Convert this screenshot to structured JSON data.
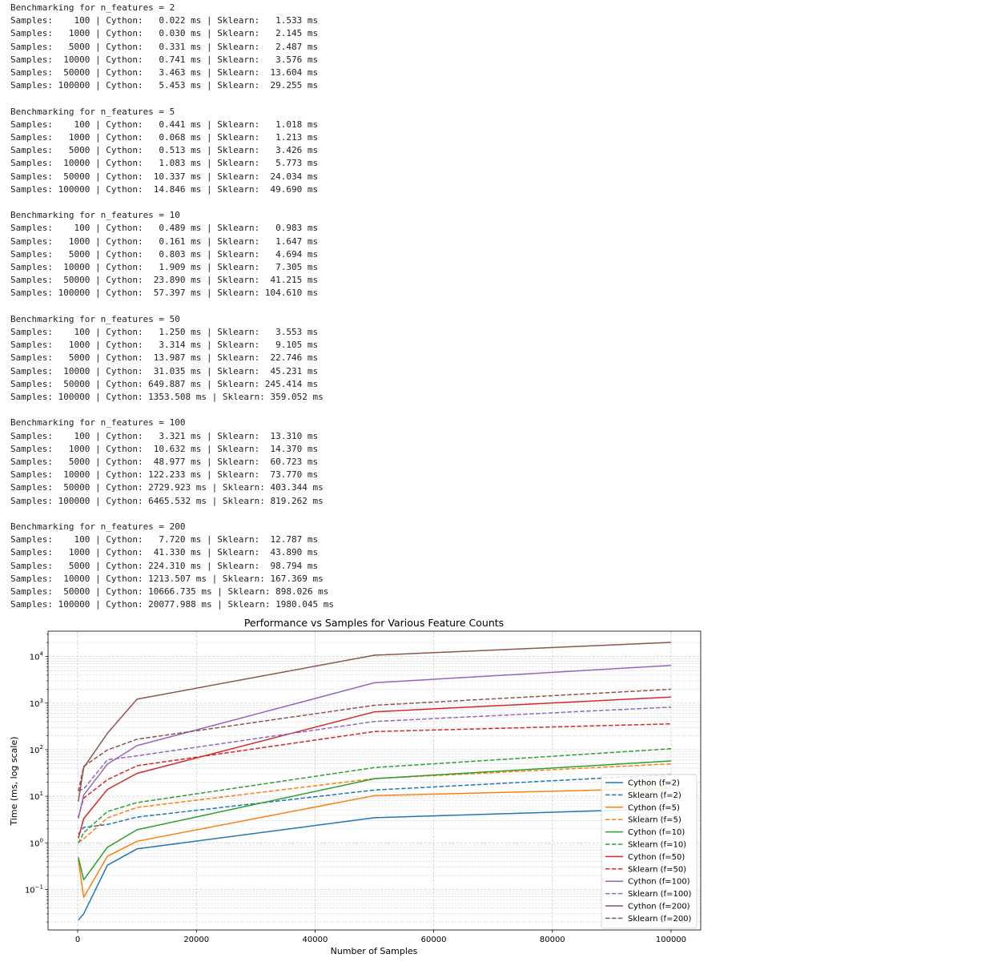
{
  "console": {
    "blocks": [
      {
        "header": "Benchmarking for n_features = 2",
        "lines": [
          "Samples:    100 | Cython:   0.022 ms | Sklearn:   1.533 ms",
          "Samples:   1000 | Cython:   0.030 ms | Sklearn:   2.145 ms",
          "Samples:   5000 | Cython:   0.331 ms | Sklearn:   2.487 ms",
          "Samples:  10000 | Cython:   0.741 ms | Sklearn:   3.576 ms",
          "Samples:  50000 | Cython:   3.463 ms | Sklearn:  13.604 ms",
          "Samples: 100000 | Cython:   5.453 ms | Sklearn:  29.255 ms"
        ]
      },
      {
        "header": "Benchmarking for n_features = 5",
        "lines": [
          "Samples:    100 | Cython:   0.441 ms | Sklearn:   1.018 ms",
          "Samples:   1000 | Cython:   0.068 ms | Sklearn:   1.213 ms",
          "Samples:   5000 | Cython:   0.513 ms | Sklearn:   3.426 ms",
          "Samples:  10000 | Cython:   1.083 ms | Sklearn:   5.773 ms",
          "Samples:  50000 | Cython:  10.337 ms | Sklearn:  24.034 ms",
          "Samples: 100000 | Cython:  14.846 ms | Sklearn:  49.690 ms"
        ]
      },
      {
        "header": "Benchmarking for n_features = 10",
        "lines": [
          "Samples:    100 | Cython:   0.489 ms | Sklearn:   0.983 ms",
          "Samples:   1000 | Cython:   0.161 ms | Sklearn:   1.647 ms",
          "Samples:   5000 | Cython:   0.803 ms | Sklearn:   4.694 ms",
          "Samples:  10000 | Cython:   1.909 ms | Sklearn:   7.305 ms",
          "Samples:  50000 | Cython:  23.890 ms | Sklearn:  41.215 ms",
          "Samples: 100000 | Cython:  57.397 ms | Sklearn: 104.610 ms"
        ]
      },
      {
        "header": "Benchmarking for n_features = 50",
        "lines": [
          "Samples:    100 | Cython:   1.250 ms | Sklearn:   3.553 ms",
          "Samples:   1000 | Cython:   3.314 ms | Sklearn:   9.105 ms",
          "Samples:   5000 | Cython:  13.987 ms | Sklearn:  22.746 ms",
          "Samples:  10000 | Cython:  31.035 ms | Sklearn:  45.231 ms",
          "Samples:  50000 | Cython: 649.887 ms | Sklearn: 245.414 ms",
          "Samples: 100000 | Cython: 1353.508 ms | Sklearn: 359.052 ms"
        ]
      },
      {
        "header": "Benchmarking for n_features = 100",
        "lines": [
          "Samples:    100 | Cython:   3.321 ms | Sklearn:  13.310 ms",
          "Samples:   1000 | Cython:  10.632 ms | Sklearn:  14.370 ms",
          "Samples:   5000 | Cython:  48.977 ms | Sklearn:  60.723 ms",
          "Samples:  10000 | Cython: 122.233 ms | Sklearn:  73.770 ms",
          "Samples:  50000 | Cython: 2729.923 ms | Sklearn: 403.344 ms",
          "Samples: 100000 | Cython: 6465.532 ms | Sklearn: 819.262 ms"
        ]
      },
      {
        "header": "Benchmarking for n_features = 200",
        "lines": [
          "Samples:    100 | Cython:   7.720 ms | Sklearn:  12.787 ms",
          "Samples:   1000 | Cython:  41.330 ms | Sklearn:  43.890 ms",
          "Samples:   5000 | Cython: 224.310 ms | Sklearn:  98.794 ms",
          "Samples:  10000 | Cython: 1213.507 ms | Sklearn: 167.369 ms",
          "Samples:  50000 | Cython: 10666.735 ms | Sklearn: 898.026 ms",
          "Samples: 100000 | Cython: 20077.988 ms | Sklearn: 1980.045 ms"
        ]
      }
    ]
  },
  "chart_data": {
    "type": "line",
    "title": "Performance vs Samples for Various Feature Counts",
    "xlabel": "Number of Samples",
    "ylabel": "Time (ms, log scale)",
    "xscale": "linear",
    "yscale": "log",
    "xlim": [
      -5000,
      105000
    ],
    "ylim": [
      0.0135,
      35000
    ],
    "xticks": [
      0,
      20000,
      40000,
      60000,
      80000,
      100000
    ],
    "xtick_labels": [
      "0",
      "20000",
      "40000",
      "60000",
      "80000",
      "100000"
    ],
    "yticks": [
      0.1,
      1,
      10,
      100,
      1000,
      10000
    ],
    "ytick_base": "10",
    "ytick_exponents": [
      "−1",
      "0",
      "1",
      "2",
      "3",
      "4"
    ],
    "grid": true,
    "legend_position": "lower right",
    "x": [
      100,
      1000,
      5000,
      10000,
      50000,
      100000
    ],
    "series": [
      {
        "name": "Cython (f=2)",
        "color": "#1f77b4",
        "dash": "solid",
        "values": [
          0.022,
          0.03,
          0.331,
          0.741,
          3.463,
          5.453
        ]
      },
      {
        "name": "Sklearn (f=2)",
        "color": "#1f77b4",
        "dash": "dashed",
        "values": [
          1.533,
          2.145,
          2.487,
          3.576,
          13.604,
          29.255
        ]
      },
      {
        "name": "Cython (f=5)",
        "color": "#ff7f0e",
        "dash": "solid",
        "values": [
          0.441,
          0.068,
          0.513,
          1.083,
          10.337,
          14.846
        ]
      },
      {
        "name": "Sklearn (f=5)",
        "color": "#ff7f0e",
        "dash": "dashed",
        "values": [
          1.018,
          1.213,
          3.426,
          5.773,
          24.034,
          49.69
        ]
      },
      {
        "name": "Cython (f=10)",
        "color": "#2ca02c",
        "dash": "solid",
        "values": [
          0.489,
          0.161,
          0.803,
          1.909,
          23.89,
          57.397
        ]
      },
      {
        "name": "Sklearn (f=10)",
        "color": "#2ca02c",
        "dash": "dashed",
        "values": [
          0.983,
          1.647,
          4.694,
          7.305,
          41.215,
          104.61
        ]
      },
      {
        "name": "Cython (f=50)",
        "color": "#d62728",
        "dash": "solid",
        "values": [
          1.25,
          3.314,
          13.987,
          31.035,
          649.887,
          1353.508
        ]
      },
      {
        "name": "Sklearn (f=50)",
        "color": "#d62728",
        "dash": "dashed",
        "values": [
          3.553,
          9.105,
          22.746,
          45.231,
          245.414,
          359.052
        ]
      },
      {
        "name": "Cython (f=100)",
        "color": "#9467bd",
        "dash": "solid",
        "values": [
          3.321,
          10.632,
          48.977,
          122.233,
          2729.923,
          6465.532
        ]
      },
      {
        "name": "Sklearn (f=100)",
        "color": "#9467bd",
        "dash": "dashed",
        "values": [
          13.31,
          14.37,
          60.723,
          73.77,
          403.344,
          819.262
        ]
      },
      {
        "name": "Cython (f=200)",
        "color": "#8c564b",
        "dash": "solid",
        "values": [
          7.72,
          41.33,
          224.31,
          1213.507,
          10666.735,
          20077.988
        ]
      },
      {
        "name": "Sklearn (f=200)",
        "color": "#8c564b",
        "dash": "dashed",
        "values": [
          12.787,
          43.89,
          98.794,
          167.369,
          898.026,
          1980.045
        ]
      }
    ]
  }
}
